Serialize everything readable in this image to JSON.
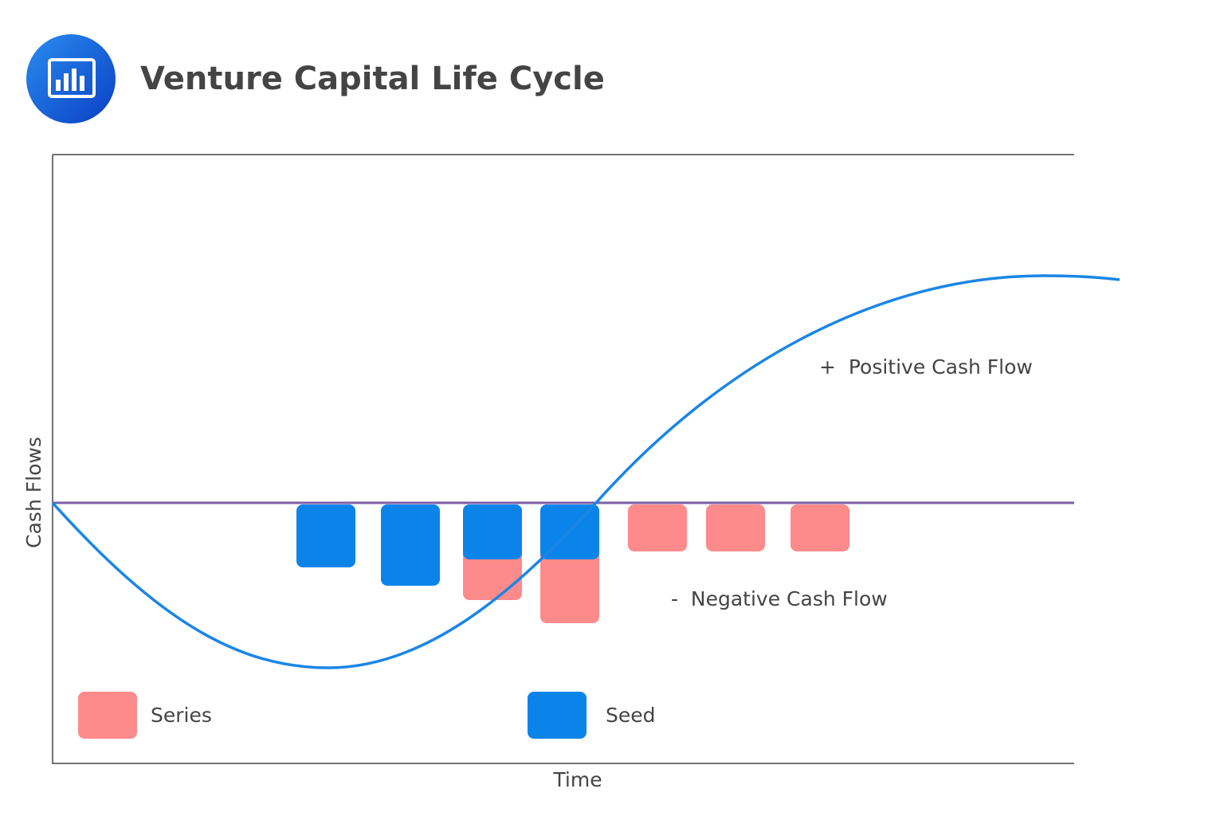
{
  "header": {
    "title": "Venture Capital Life Cycle"
  },
  "axes": {
    "x_label": "Time",
    "y_label": "Cash Flows"
  },
  "annotations": {
    "positive": "+  Positive Cash Flow",
    "negative": "-  Negative Cash Flow"
  },
  "legend": [
    {
      "label": "Series"
    },
    {
      "label": "Seed"
    }
  ]
}
